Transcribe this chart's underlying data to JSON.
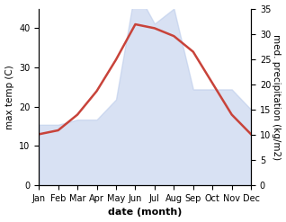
{
  "months": [
    "Jan",
    "Feb",
    "Mar",
    "Apr",
    "May",
    "Jun",
    "Jul",
    "Aug",
    "Sep",
    "Oct",
    "Nov",
    "Dec"
  ],
  "temperature": [
    13,
    14,
    18,
    24,
    32,
    41,
    40,
    38,
    34,
    26,
    18,
    13
  ],
  "precipitation": [
    12,
    12,
    13,
    13,
    17,
    39,
    32,
    35,
    19,
    19,
    19,
    15
  ],
  "temp_color": "#c8433a",
  "precip_color": "#b8c9ea",
  "precip_fill_alpha": 0.55,
  "temp_ylim": [
    0,
    45
  ],
  "precip_ylim": [
    0,
    35
  ],
  "temp_yticks": [
    0,
    10,
    20,
    30,
    40
  ],
  "precip_yticks": [
    0,
    5,
    10,
    15,
    20,
    25,
    30,
    35
  ],
  "xlabel": "date (month)",
  "ylabel_left": "max temp (C)",
  "ylabel_right": "med. precipitation (kg/m2)",
  "xlabel_fontsize": 8,
  "ylabel_fontsize": 7.5,
  "tick_fontsize": 7
}
